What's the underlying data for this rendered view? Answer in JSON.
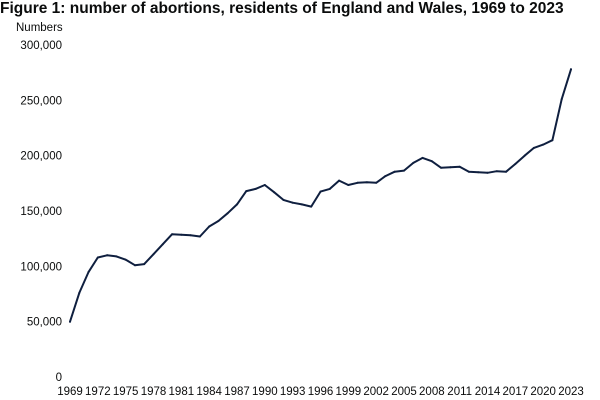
{
  "chart_data": {
    "type": "line",
    "title": "Figure 1: number of abortions, residents of England and Wales, 1969 to 2023",
    "ylabel": "Numbers",
    "xlabel": "",
    "ylim": [
      0,
      300000
    ],
    "xlim": [
      1969,
      2023
    ],
    "grid": false,
    "y_ticks": [
      0,
      50000,
      100000,
      150000,
      200000,
      250000,
      300000
    ],
    "y_tick_labels": [
      "0",
      "50,000",
      "100,000",
      "150,000",
      "200,000",
      "250,000",
      "300,000"
    ],
    "x_ticks": [
      1969,
      1972,
      1975,
      1978,
      1981,
      1984,
      1987,
      1990,
      1993,
      1996,
      1999,
      2002,
      2005,
      2008,
      2011,
      2014,
      2017,
      2020,
      2023
    ],
    "x_tick_labels": [
      "1969",
      "1972",
      "1975",
      "1978",
      "1981",
      "1984",
      "1987",
      "1990",
      "1993",
      "1996",
      "1999",
      "2002",
      "2005",
      "2008",
      "2011",
      "2014",
      "2017",
      "2020",
      "2023"
    ],
    "series": [
      {
        "name": "Abortions",
        "color": "#0f1f3f",
        "x": [
          1969,
          1970,
          1971,
          1972,
          1973,
          1974,
          1975,
          1976,
          1977,
          1978,
          1979,
          1980,
          1981,
          1982,
          1983,
          1984,
          1985,
          1986,
          1987,
          1988,
          1989,
          1990,
          1991,
          1992,
          1993,
          1994,
          1995,
          1996,
          1997,
          1998,
          1999,
          2000,
          2001,
          2002,
          2003,
          2004,
          2005,
          2006,
          2007,
          2008,
          2009,
          2010,
          2011,
          2012,
          2013,
          2014,
          2015,
          2016,
          2017,
          2018,
          2019,
          2020,
          2021,
          2022,
          2023
        ],
        "values": [
          50000,
          76000,
          95000,
          108000,
          110000,
          109000,
          106000,
          101000,
          102000,
          111000,
          120000,
          129000,
          128500,
          128000,
          127000,
          136000,
          141000,
          148000,
          156000,
          168000,
          170000,
          173500,
          167000,
          160000,
          157500,
          156000,
          154000,
          167500,
          170000,
          177500,
          173500,
          175500,
          176000,
          175500,
          181500,
          185500,
          186500,
          193500,
          198000,
          195000,
          189000,
          189500,
          190000,
          185500,
          185000,
          184500,
          186000,
          185500,
          192500,
          200000,
          207000,
          210000,
          214000,
          251000,
          278000
        ]
      }
    ]
  }
}
